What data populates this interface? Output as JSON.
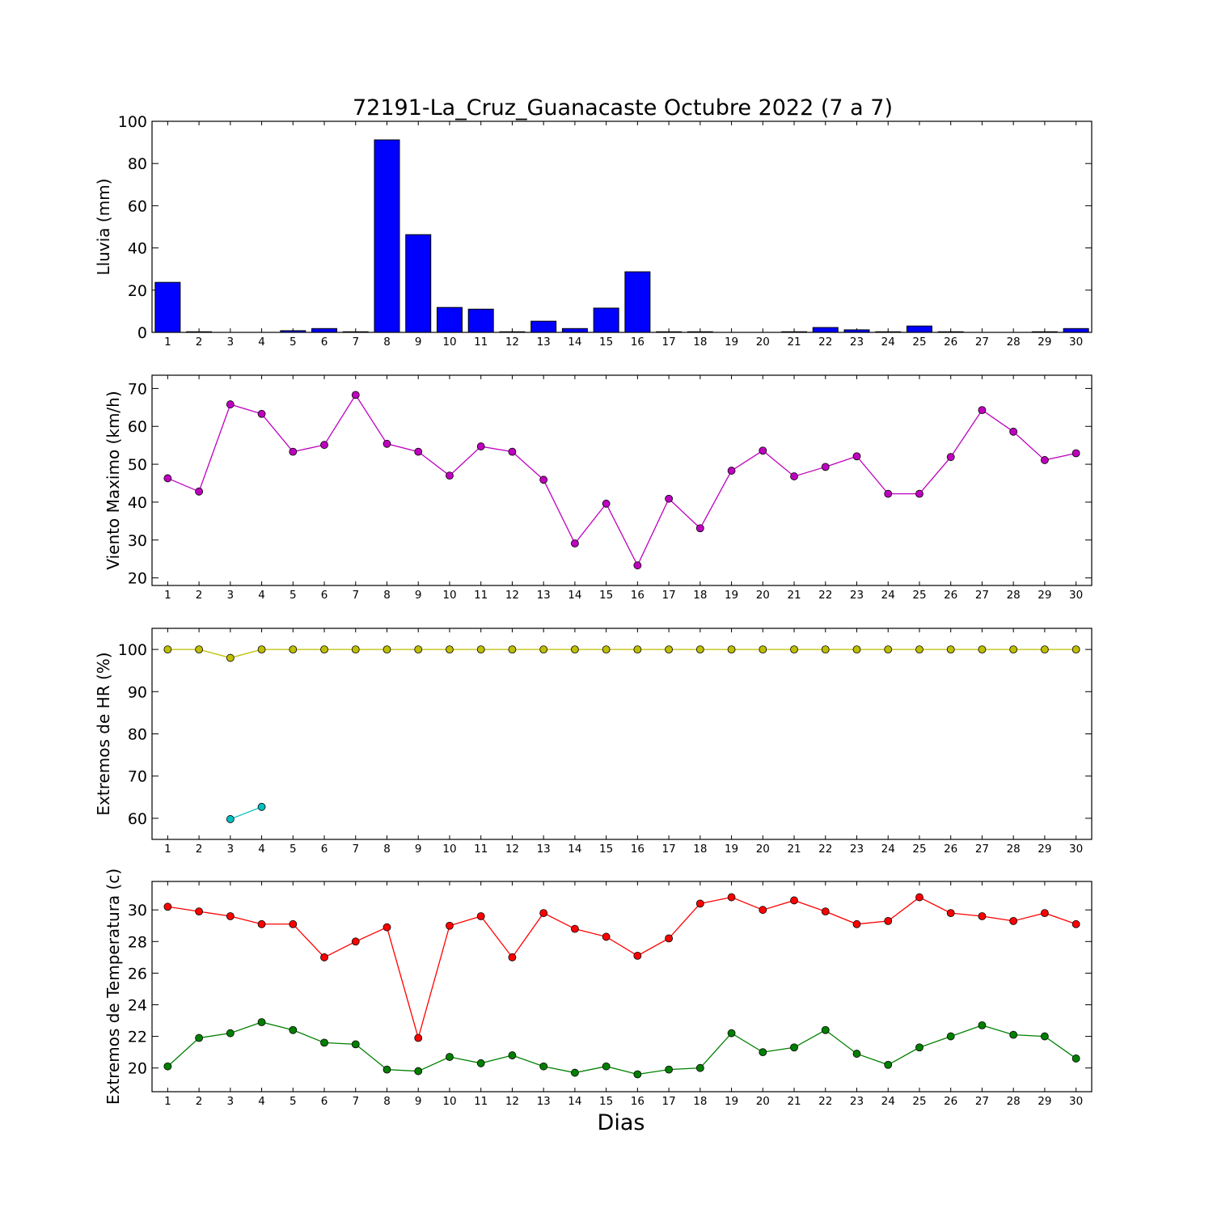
{
  "title": "72191-La_Cruz_Guanacaste Octubre 2022  (7 a 7)",
  "xlabel": "Dias",
  "colors": {
    "rain": "#0000ff",
    "wind": "#bf00bf",
    "hr_max": "#bfbf00",
    "hr_min": "#00bfbf",
    "temp_max": "#ff0000",
    "temp_min": "#008000"
  },
  "chart_data": [
    {
      "type": "bar",
      "ylabel": "Lluvia (mm)",
      "ylim": [
        0,
        100
      ],
      "yticks": [
        0,
        20,
        40,
        60,
        80,
        100
      ],
      "categories": [
        "1",
        "2",
        "3",
        "4",
        "5",
        "6",
        "7",
        "8",
        "9",
        "10",
        "11",
        "12",
        "13",
        "14",
        "15",
        "16",
        "17",
        "18",
        "19",
        "20",
        "21",
        "22",
        "23",
        "24",
        "25",
        "26",
        "27",
        "28",
        "29",
        "30"
      ],
      "series": [
        {
          "color": "#0000ff",
          "values": [
            23.7,
            0.3,
            0,
            0,
            0.8,
            1.8,
            0.3,
            91.2,
            46.3,
            11.8,
            11.0,
            0.3,
            5.3,
            1.8,
            11.5,
            28.7,
            0.3,
            0.3,
            0,
            0,
            0.3,
            2.3,
            1.2,
            0.3,
            3.0,
            0.3,
            0,
            0,
            0.3,
            1.8
          ]
        }
      ]
    },
    {
      "type": "line",
      "ylabel": "Viento Maximo (km/h)",
      "ylim": [
        18,
        73.5
      ],
      "yticks": [
        20,
        30,
        40,
        50,
        60,
        70
      ],
      "x": [
        1,
        2,
        3,
        4,
        5,
        6,
        7,
        8,
        9,
        10,
        11,
        12,
        13,
        14,
        15,
        16,
        17,
        18,
        19,
        20,
        21,
        22,
        23,
        24,
        25,
        26,
        27,
        28,
        29,
        30
      ],
      "series": [
        {
          "color": "#bf00bf",
          "values": [
            46.3,
            42.8,
            65.8,
            63.3,
            53.3,
            55.1,
            68.3,
            55.4,
            53.3,
            47.0,
            54.7,
            53.3,
            45.9,
            29.1,
            39.6,
            23.3,
            40.9,
            33.1,
            48.3,
            53.6,
            46.8,
            49.3,
            52.1,
            42.2,
            42.2,
            51.9,
            64.3,
            58.6,
            51.1,
            52.9
          ]
        }
      ]
    },
    {
      "type": "line",
      "ylabel": "Extremos de HR (%)",
      "ylim": [
        55,
        105
      ],
      "yticks": [
        60,
        70,
        80,
        90,
        100
      ],
      "x": [
        1,
        2,
        3,
        4,
        5,
        6,
        7,
        8,
        9,
        10,
        11,
        12,
        13,
        14,
        15,
        16,
        17,
        18,
        19,
        20,
        21,
        22,
        23,
        24,
        25,
        26,
        27,
        28,
        29,
        30
      ],
      "series": [
        {
          "color": "#bfbf00",
          "values": [
            100,
            100,
            98,
            100,
            100,
            100,
            100,
            100,
            100,
            100,
            100,
            100,
            100,
            100,
            100,
            100,
            100,
            100,
            100,
            100,
            100,
            100,
            100,
            100,
            100,
            100,
            100,
            100,
            100,
            100
          ]
        },
        {
          "color": "#00bfbf",
          "values": [
            null,
            null,
            59.8,
            62.7,
            null,
            null,
            null,
            null,
            null,
            null,
            null,
            null,
            null,
            null,
            null,
            null,
            null,
            null,
            null,
            null,
            null,
            null,
            null,
            null,
            null,
            null,
            null,
            null,
            null,
            null
          ]
        }
      ]
    },
    {
      "type": "line",
      "ylabel": "Extremos de Temperatura (c)",
      "ylim": [
        18.5,
        31.8
      ],
      "yticks": [
        20,
        22,
        24,
        26,
        28,
        30
      ],
      "x": [
        1,
        2,
        3,
        4,
        5,
        6,
        7,
        8,
        9,
        10,
        11,
        12,
        13,
        14,
        15,
        16,
        17,
        18,
        19,
        20,
        21,
        22,
        23,
        24,
        25,
        26,
        27,
        28,
        29,
        30
      ],
      "series": [
        {
          "color": "#ff0000",
          "values": [
            30.2,
            29.9,
            29.6,
            29.1,
            29.1,
            27.0,
            28.0,
            28.9,
            21.9,
            29.0,
            29.6,
            27.0,
            29.8,
            28.8,
            28.3,
            27.1,
            28.2,
            30.4,
            30.8,
            30.0,
            30.6,
            29.9,
            29.1,
            29.3,
            30.8,
            29.8,
            29.6,
            29.3,
            29.8,
            29.1
          ]
        },
        {
          "color": "#008000",
          "values": [
            20.1,
            21.9,
            22.2,
            22.9,
            22.4,
            21.6,
            21.5,
            19.9,
            19.8,
            20.7,
            20.3,
            20.8,
            20.1,
            19.7,
            20.1,
            19.6,
            19.9,
            20.0,
            22.2,
            21.0,
            21.3,
            22.4,
            20.9,
            20.2,
            21.3,
            22.0,
            22.7,
            22.1,
            22.0,
            20.6
          ]
        }
      ]
    }
  ]
}
